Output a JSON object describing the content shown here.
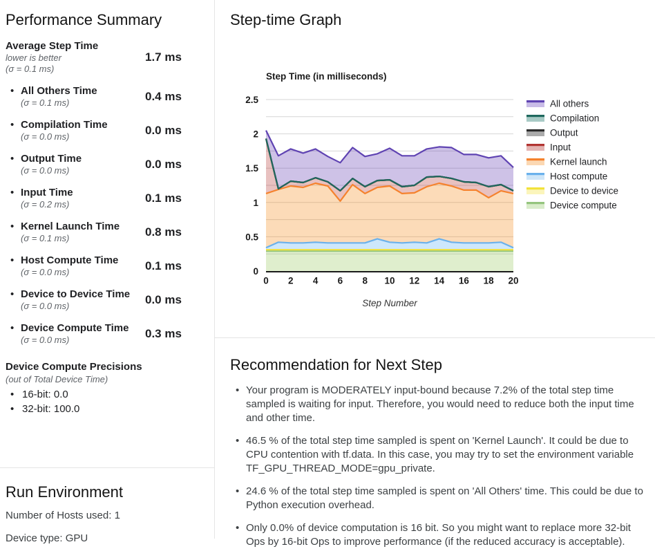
{
  "performance_summary": {
    "title": "Performance Summary",
    "rows": [
      {
        "label": "Average Step Time",
        "note": "lower is better",
        "sigma": "(σ = 0.1 ms)",
        "value": "1.7 ms",
        "bullet": false
      },
      {
        "label": "All Others Time",
        "sigma": "(σ = 0.1 ms)",
        "value": "0.4 ms",
        "bullet": true
      },
      {
        "label": "Compilation Time",
        "sigma": "(σ = 0.0 ms)",
        "value": "0.0 ms",
        "bullet": true
      },
      {
        "label": "Output Time",
        "sigma": "(σ = 0.0 ms)",
        "value": "0.0 ms",
        "bullet": true
      },
      {
        "label": "Input Time",
        "sigma": "(σ = 0.2 ms)",
        "value": "0.1 ms",
        "bullet": true
      },
      {
        "label": "Kernel Launch Time",
        "sigma": "(σ = 0.1 ms)",
        "value": "0.8 ms",
        "bullet": true
      },
      {
        "label": "Host Compute Time",
        "sigma": "(σ = 0.0 ms)",
        "value": "0.1 ms",
        "bullet": true
      },
      {
        "label": "Device to Device Time",
        "sigma": "(σ = 0.0 ms)",
        "value": "0.0 ms",
        "bullet": true
      },
      {
        "label": "Device Compute Time",
        "sigma": "(σ = 0.0 ms)",
        "value": "0.3 ms",
        "bullet": true
      }
    ],
    "precisions": {
      "title": "Device Compute Precisions",
      "note": "(out of Total Device Time)",
      "items": [
        "16-bit: 0.0",
        "32-bit: 100.0"
      ]
    }
  },
  "run_environment": {
    "title": "Run Environment",
    "lines": [
      "Number of Hosts used: 1",
      "Device type: GPU"
    ]
  },
  "step_time_graph": {
    "title": "Step-time Graph"
  },
  "recommendation": {
    "title": "Recommendation for Next Step",
    "bullets": [
      "Your program is MODERATELY input-bound because 7.2% of the total step time sampled is waiting for input. Therefore, you would need to reduce both the input time and other time.",
      "46.5 % of the total step time sampled is spent on 'Kernel Launch'. It could be due to CPU contention with tf.data. In this case, you may try to set the environment variable TF_GPU_THREAD_MODE=gpu_private.",
      "24.6 % of the total step time sampled is spent on 'All Others' time. This could be due to Python execution overhead.",
      "Only 0.0% of device computation is 16 bit. So you might want to replace more 32-bit Ops by 16-bit Ops to improve performance (if the reduced accuracy is acceptable)."
    ]
  },
  "chart_data": {
    "type": "area",
    "stacked": true,
    "title": "Step Time (in milliseconds)",
    "xlabel": "Step Number",
    "ylim": [
      0,
      2.5
    ],
    "ytick_labels": [
      "0",
      "0.5",
      "1",
      "1.5",
      "2",
      "2.5"
    ],
    "yticks": [
      0,
      0.5,
      1,
      1.5,
      2,
      2.5
    ],
    "minor_grid_step": 0.25,
    "xticks": [
      0,
      2,
      4,
      6,
      8,
      10,
      12,
      14,
      16,
      18,
      20
    ],
    "legend_position": "right",
    "x": [
      0,
      1,
      2,
      3,
      4,
      5,
      6,
      7,
      8,
      9,
      10,
      11,
      12,
      13,
      14,
      15,
      16,
      17,
      18,
      19,
      20
    ],
    "series": [
      {
        "name": "Device compute",
        "line": "#94c57d",
        "fill": "rgba(139,195,74,0.28)",
        "values": [
          0.29,
          0.29,
          0.29,
          0.29,
          0.29,
          0.29,
          0.29,
          0.29,
          0.29,
          0.29,
          0.29,
          0.29,
          0.29,
          0.29,
          0.29,
          0.29,
          0.29,
          0.29,
          0.29,
          0.29,
          0.29
        ]
      },
      {
        "name": "Device to device",
        "line": "#f2e23b",
        "fill": "rgba(242,226,59,0.35)",
        "values": [
          0.02,
          0.02,
          0.02,
          0.02,
          0.02,
          0.02,
          0.02,
          0.02,
          0.02,
          0.02,
          0.02,
          0.02,
          0.02,
          0.02,
          0.02,
          0.02,
          0.02,
          0.02,
          0.02,
          0.02,
          0.02
        ]
      },
      {
        "name": "Host compute",
        "line": "#6ab1ec",
        "fill": "rgba(100,181,246,0.32)",
        "values": [
          0.03,
          0.11,
          0.1,
          0.1,
          0.11,
          0.1,
          0.1,
          0.1,
          0.1,
          0.16,
          0.11,
          0.1,
          0.11,
          0.1,
          0.16,
          0.11,
          0.1,
          0.1,
          0.1,
          0.11,
          0.03
        ]
      },
      {
        "name": "Kernel launch",
        "line": "#f5822d",
        "fill": "rgba(245,124,0,0.28)",
        "values": [
          0.79,
          0.77,
          0.83,
          0.81,
          0.86,
          0.83,
          0.61,
          0.85,
          0.72,
          0.75,
          0.82,
          0.72,
          0.72,
          0.82,
          0.81,
          0.82,
          0.77,
          0.77,
          0.66,
          0.75,
          0.79
        ]
      },
      {
        "name": "Input",
        "line": "#b23431",
        "fill": "rgba(178,49,46,0.30)",
        "values": [
          0.8,
          0.01,
          0.07,
          0.07,
          0.08,
          0.06,
          0.15,
          0.09,
          0.1,
          0.1,
          0.09,
          0.1,
          0.11,
          0.14,
          0.1,
          0.11,
          0.12,
          0.11,
          0.16,
          0.09,
          0.04
        ]
      },
      {
        "name": "Output",
        "line": "#2b2b2b",
        "fill": "rgba(80,80,80,0.30)",
        "values": [
          0,
          0,
          0,
          0,
          0,
          0,
          0,
          0,
          0,
          0,
          0,
          0,
          0,
          0,
          0,
          0,
          0,
          0,
          0,
          0,
          0
        ]
      },
      {
        "name": "Compilation",
        "line": "#1e685e",
        "fill": "rgba(38,166,154,0.30)",
        "values": [
          0,
          0,
          0,
          0,
          0,
          0,
          0,
          0,
          0,
          0,
          0,
          0,
          0,
          0,
          0,
          0,
          0,
          0,
          0,
          0,
          0
        ]
      },
      {
        "name": "All others",
        "line": "#5f43b2",
        "fill": "rgba(94,53,177,0.30)",
        "values": [
          0.12,
          0.48,
          0.47,
          0.43,
          0.42,
          0.37,
          0.41,
          0.45,
          0.44,
          0.39,
          0.46,
          0.45,
          0.43,
          0.41,
          0.43,
          0.45,
          0.4,
          0.41,
          0.42,
          0.42,
          0.34
        ]
      }
    ],
    "legend": [
      {
        "name": "All others",
        "line": "#5f43b2",
        "fill": "#c9bce7"
      },
      {
        "name": "Compilation",
        "line": "#1e685e",
        "fill": "#a8cac5"
      },
      {
        "name": "Output",
        "line": "#2b2b2b",
        "fill": "#ababab"
      },
      {
        "name": "Input",
        "line": "#b23431",
        "fill": "#e4b5b3"
      },
      {
        "name": "Kernel launch",
        "line": "#f5822d",
        "fill": "#fbd8b3"
      },
      {
        "name": "Host compute",
        "line": "#6ab1ec",
        "fill": "#cfe6f8"
      },
      {
        "name": "Device to device",
        "line": "#f2e23b",
        "fill": "#fbf5bb"
      },
      {
        "name": "Device compute",
        "line": "#94c57d",
        "fill": "#d9ecca"
      }
    ]
  }
}
